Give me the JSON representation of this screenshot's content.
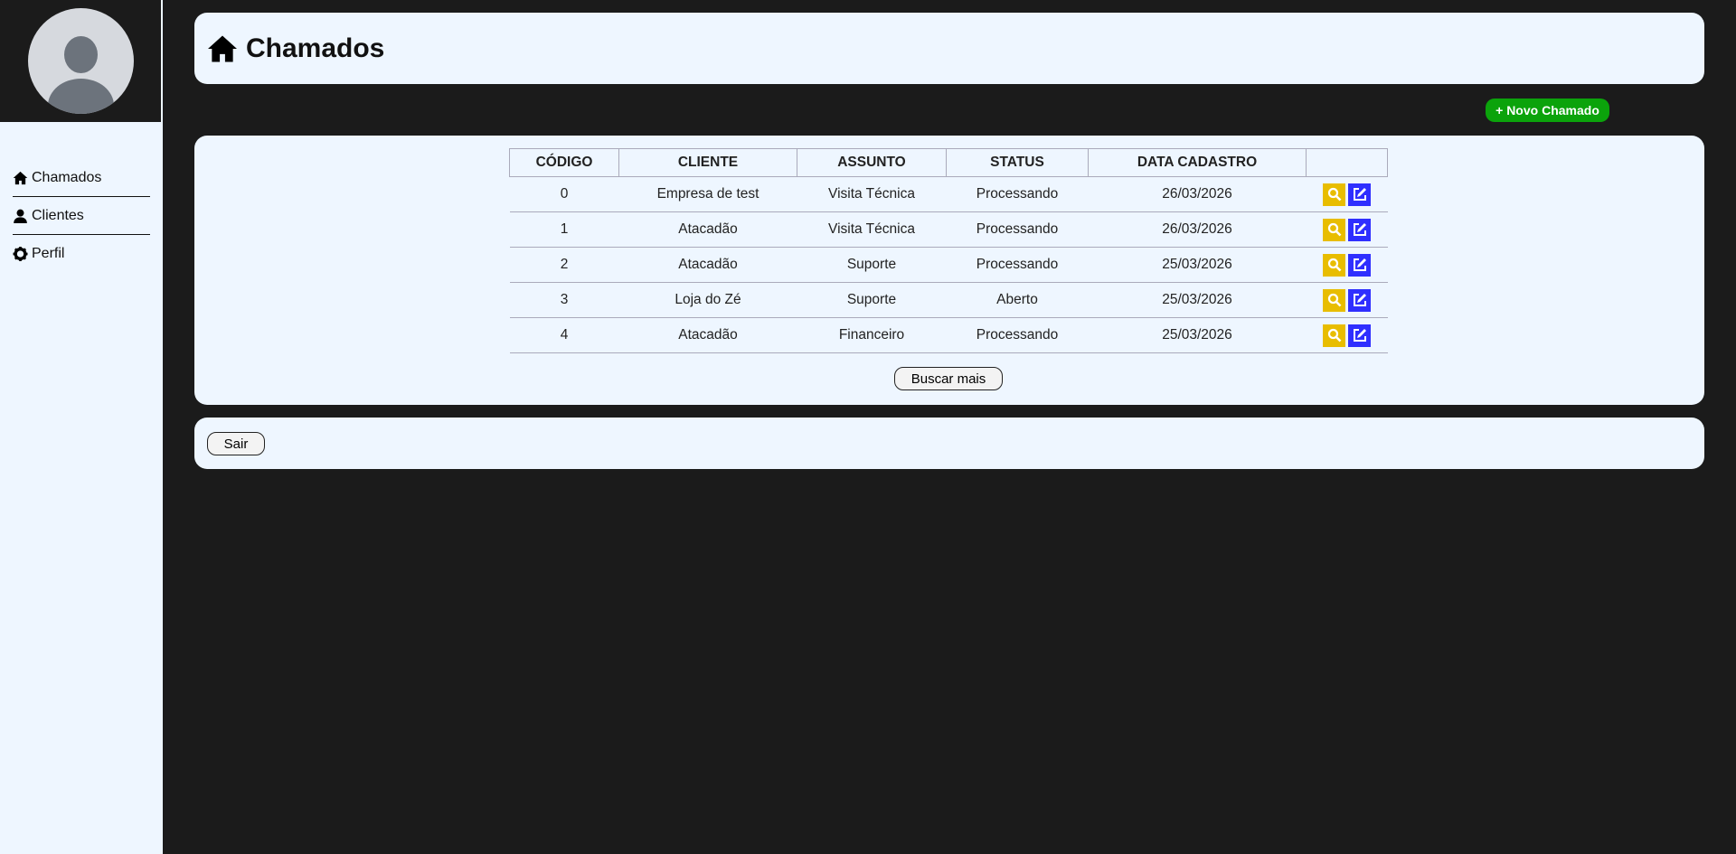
{
  "sidebar": {
    "items": [
      {
        "label": "Chamados",
        "icon": "home-icon"
      },
      {
        "label": "Clientes",
        "icon": "user-icon"
      },
      {
        "label": "Perfil",
        "icon": "gear-icon"
      }
    ]
  },
  "header": {
    "title": "Chamados",
    "icon": "home-icon"
  },
  "actions": {
    "new_ticket": "+ Novo Chamado",
    "load_more": "Buscar mais",
    "logout": "Sair"
  },
  "table": {
    "columns": [
      "CÓDIGO",
      "CLIENTE",
      "ASSUNTO",
      "STATUS",
      "DATA CADASTRO",
      ""
    ],
    "rows": [
      {
        "codigo": "0",
        "cliente": "Empresa de test",
        "assunto": "Visita Técnica",
        "status": "Processando",
        "data": "26/03/2026"
      },
      {
        "codigo": "1",
        "cliente": "Atacadão",
        "assunto": "Visita Técnica",
        "status": "Processando",
        "data": "26/03/2026"
      },
      {
        "codigo": "2",
        "cliente": "Atacadão",
        "assunto": "Suporte",
        "status": "Processando",
        "data": "25/03/2026"
      },
      {
        "codigo": "3",
        "cliente": "Loja do Zé",
        "assunto": "Suporte",
        "status": "Aberto",
        "data": "25/03/2026"
      },
      {
        "codigo": "4",
        "cliente": "Atacadão",
        "assunto": "Financeiro",
        "status": "Processando",
        "data": "25/03/2026"
      }
    ]
  },
  "colors": {
    "background": "#1b1b1b",
    "panel": "#eef6ff",
    "new_button": "#0ba30b",
    "view_button": "#e8bd00",
    "edit_button": "#2f2fff"
  }
}
